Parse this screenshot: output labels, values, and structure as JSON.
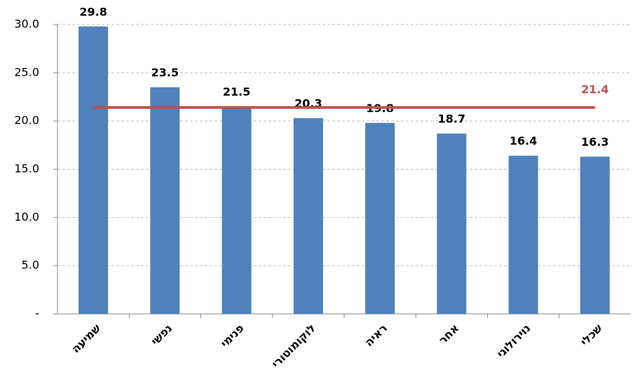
{
  "chart_data": {
    "type": "bar",
    "categories": [
      "שמיעה",
      "נפשי",
      "פנימי",
      "לוקומוטורי",
      "ראיה",
      "אחר",
      "נוירולוגי",
      "שכלי"
    ],
    "values": [
      29.8,
      23.5,
      21.5,
      20.3,
      19.8,
      18.7,
      16.4,
      16.3
    ],
    "color": "#4f81bd",
    "ylim": [
      0,
      30
    ],
    "yticks": [
      {
        "value": 0,
        "label": "-"
      },
      {
        "value": 5,
        "label": "5.0"
      },
      {
        "value": 10,
        "label": "10.0"
      },
      {
        "value": 15,
        "label": "15.0"
      },
      {
        "value": 20,
        "label": "20.0"
      },
      {
        "value": 25,
        "label": "25.0"
      },
      {
        "value": 30,
        "label": "30.0"
      }
    ],
    "grid": true,
    "reference_line": {
      "value": 21.4,
      "color": "#c0504d"
    }
  }
}
